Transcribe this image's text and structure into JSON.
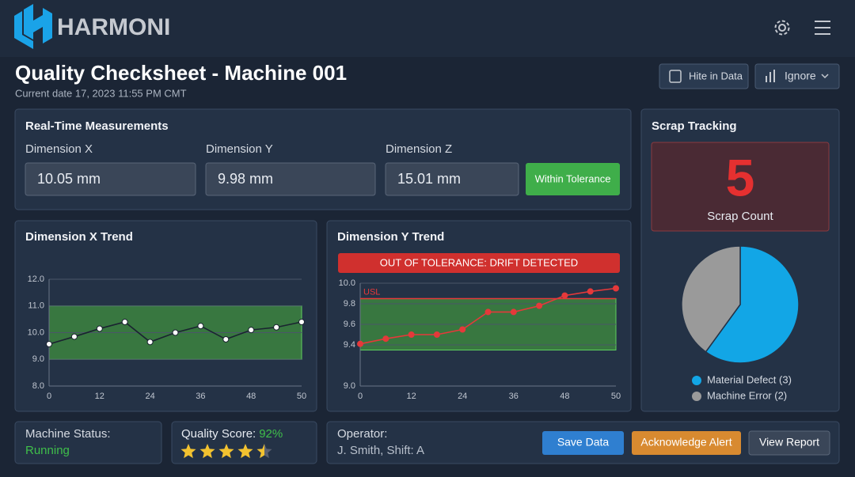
{
  "header": {
    "brand": "HARMONI"
  },
  "page": {
    "title": "Quality Checksheet - Machine 001",
    "subtitle": "Current date 17, 2023 11:55 PM CMT",
    "buttons": [
      "Hite in Data",
      "Ignore"
    ]
  },
  "measurements": {
    "title": "Real-Time Measurements",
    "fields": [
      {
        "label": "Dimension X",
        "value": "10.05 mm"
      },
      {
        "label": "Dimension Y",
        "value": "9.98 mm"
      },
      {
        "label": "Dimension Z",
        "value": "15.01 mm"
      }
    ],
    "status": "Within Tolerance"
  },
  "scrap": {
    "title": "Scrap Tracking",
    "count": 5,
    "count_label": "Scrap Count"
  },
  "chart_data": [
    {
      "type": "line",
      "title": "Dimension X Trend",
      "categories": [
        "0",
        null,
        "12",
        null,
        "24",
        null,
        "36",
        null,
        "48",
        null,
        "50"
      ],
      "values": [
        9.57,
        9.85,
        10.15,
        10.4,
        9.65,
        10.0,
        10.25,
        9.75,
        10.1,
        10.2,
        10.4
      ],
      "color": "#1a2330",
      "marker_color": "#ffffff",
      "band": [
        9,
        11
      ],
      "band_color": "#3f8f3f",
      "ylim": [
        8,
        12
      ],
      "yticks": [
        {
          "value": 8,
          "label": "8.0"
        },
        {
          "value": 9,
          "label": "9.0"
        },
        {
          "value": 10,
          "label": "10.0"
        },
        {
          "value": 11,
          "label": "11.0"
        },
        {
          "value": 12,
          "label": "12.0"
        }
      ],
      "grid": true
    },
    {
      "type": "line",
      "title": "Dimension Y Trend",
      "annotation": "OUT OF TOLERANCE: DRIFT DETECTED",
      "categories": [
        "0",
        null,
        "12",
        null,
        "24",
        null,
        "36",
        null,
        "48",
        null,
        "50"
      ],
      "values": [
        9.41,
        9.46,
        9.5,
        9.5,
        9.55,
        9.72,
        9.72,
        9.78,
        9.88,
        9.92,
        9.95
      ],
      "color": "#e5393a",
      "marker_color": "#e5393a",
      "band": [
        9.35,
        9.85
      ],
      "band_color": "#3f8f3f",
      "limit_line": {
        "label": "USL",
        "value": 9.85,
        "color": "#e5393a"
      },
      "ylim": [
        9.0,
        10.0
      ],
      "yticks": [
        {
          "value": 9.0,
          "label": "9.0"
        },
        9.4,
        9.6,
        9.8,
        {
          "value": 10.0,
          "label": "10.0"
        }
      ],
      "grid": true
    },
    {
      "type": "pie",
      "categories": [
        "Material Defect (3)",
        "Machine Error (2)"
      ],
      "values": [
        3,
        2
      ],
      "colors": [
        "#12a6e6",
        "#9a9a9a"
      ]
    }
  ],
  "footer": {
    "status": {
      "label": "Machine Status:",
      "value": "Running"
    },
    "quality": {
      "label": "Quality Score:",
      "value": "92%",
      "rating": 4.5
    },
    "operator": {
      "label": "Operator:",
      "value": "J. Smith, Shift: A"
    },
    "buttons": [
      "Save Data",
      "Acknowledge Alert",
      "View Report"
    ]
  }
}
